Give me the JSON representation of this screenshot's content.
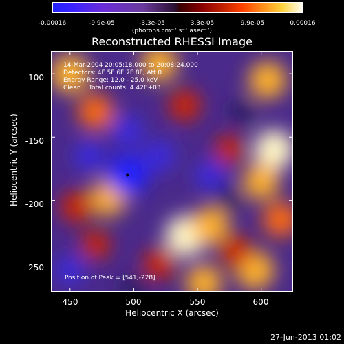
{
  "chart_data": {
    "type": "heatmap",
    "title": "Reconstructed RHESSI Image",
    "xlabel": "Heliocentric X (arcsec)",
    "ylabel": "Heliocentric Y (arcsec)",
    "xlim": [
      435,
      625
    ],
    "ylim": [
      -272,
      -82
    ],
    "xticks": [
      450,
      500,
      550,
      600
    ],
    "yticks": [
      -100,
      -150,
      -200,
      -250
    ],
    "colorbar": {
      "ticks": [
        "-0.00016",
        "-9.9e-05",
        "-3.3e-05",
        "3.3e-05",
        "9.9e-05",
        "0.00016"
      ],
      "units": "(photons cm⁻² s⁻¹ asec⁻²)",
      "range": [
        -0.00016,
        0.00016
      ]
    },
    "annotations": [
      "14-Mar-2004 20:05:18.000 to 20:08:24.000",
      "Detectors: 4F 5F 6F 7F 8F, Att 0",
      "Energy Range: 12.0 - 25.0 keV",
      "Clean    Total counts: 4.42E+03"
    ],
    "peak_label": "Position of Peak = [541,-228]",
    "peak": [
      541,
      -228
    ],
    "marker": [
      495,
      -180
    ],
    "blobs": [
      {
        "x": 450,
        "y": -100,
        "v": 0.9
      },
      {
        "x": 470,
        "y": -130,
        "v": 0.75
      },
      {
        "x": 520,
        "y": -92,
        "v": 0.8
      },
      {
        "x": 540,
        "y": -125,
        "v": 0.6
      },
      {
        "x": 605,
        "y": -105,
        "v": 0.85
      },
      {
        "x": 575,
        "y": -160,
        "v": 0.5
      },
      {
        "x": 610,
        "y": -160,
        "v": 0.95
      },
      {
        "x": 600,
        "y": -185,
        "v": 0.8
      },
      {
        "x": 615,
        "y": -215,
        "v": 0.75
      },
      {
        "x": 480,
        "y": -198,
        "v": 0.8
      },
      {
        "x": 455,
        "y": -205,
        "v": 0.6
      },
      {
        "x": 541,
        "y": -228,
        "v": 1.0
      },
      {
        "x": 560,
        "y": -220,
        "v": 0.85
      },
      {
        "x": 555,
        "y": -265,
        "v": 0.8
      },
      {
        "x": 595,
        "y": -255,
        "v": 0.9
      },
      {
        "x": 580,
        "y": -240,
        "v": 0.6
      },
      {
        "x": 520,
        "y": -250,
        "v": 0.6
      },
      {
        "x": 470,
        "y": -235,
        "v": 0.5
      },
      {
        "x": 495,
        "y": -180,
        "v": -1.0
      },
      {
        "x": 520,
        "y": -165,
        "v": -0.6
      },
      {
        "x": 560,
        "y": -180,
        "v": -0.55
      },
      {
        "x": 495,
        "y": -145,
        "v": -0.6
      },
      {
        "x": 465,
        "y": -165,
        "v": -0.55
      },
      {
        "x": 450,
        "y": -255,
        "v": -0.5
      },
      {
        "x": 500,
        "y": -270,
        "v": -0.45
      },
      {
        "x": 585,
        "y": -130,
        "v": -0.35
      },
      {
        "x": 575,
        "y": -200,
        "v": -0.4
      }
    ]
  },
  "footer": {
    "date": "27-Jun-2013 01:02"
  }
}
